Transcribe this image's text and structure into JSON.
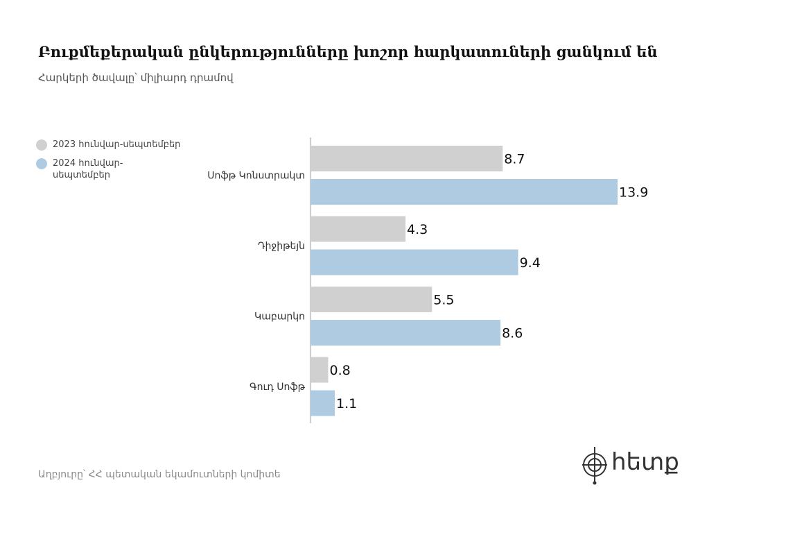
{
  "title": "Բուքմեքերական ընկերությունները խոշոր հարկատուների ցանկում են",
  "subtitle": "Հարկերի ծավալը՝ միլիարդ դրամով",
  "source": "Աղբյուրը՝ ՀՀ պետական եկամուտների կոմիտե",
  "logo_text": "հետք",
  "colors": {
    "series_2023": "#d0d0d0",
    "series_2024": "#afcbe1",
    "axis": "#bdbdbd"
  },
  "chart_data": {
    "type": "bar",
    "orientation": "horizontal",
    "categories": [
      "Սոֆթ Կոնստրակտ",
      "Դիջիթեյն",
      "Կաբարկո",
      "Գուդ Սոֆթ"
    ],
    "series": [
      {
        "name": "2023 հունվար-սեպտեմբեր",
        "values": [
          8.7,
          4.3,
          5.5,
          0.8
        ]
      },
      {
        "name": "2024 հունվար-սեպտեմբեր",
        "values": [
          13.9,
          9.4,
          8.6,
          1.1
        ]
      }
    ],
    "xlim": [
      0,
      13.9
    ],
    "grid": false,
    "legend": "top-left"
  }
}
